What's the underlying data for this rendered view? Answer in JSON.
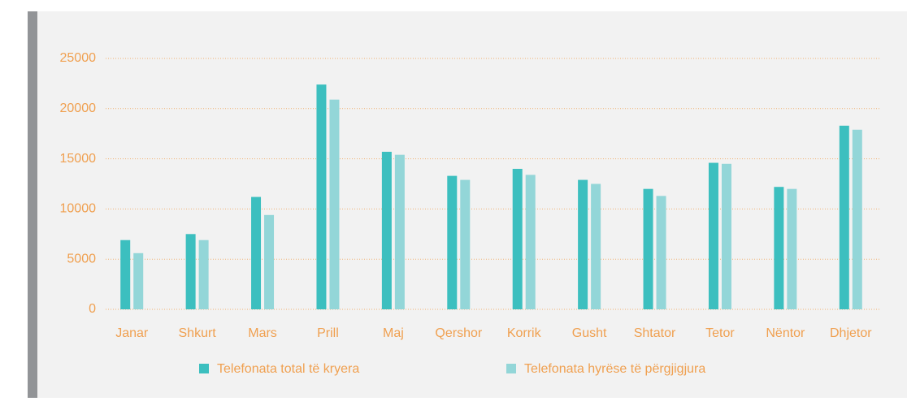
{
  "chart_data": {
    "type": "bar",
    "categories": [
      "Janar",
      "Shkurt",
      "Mars",
      "Prill",
      "Maj",
      "Qershor",
      "Korrik",
      "Gusht",
      "Shtator",
      "Tetor",
      "Nëntor",
      "Dhjetor"
    ],
    "series": [
      {
        "name": "Telefonata total të kryera",
        "color": "#3cbfbf",
        "values": [
          6900,
          7500,
          11200,
          22400,
          15700,
          13300,
          14000,
          12900,
          12000,
          14600,
          12200,
          18300
        ]
      },
      {
        "name": "Telefonata hyrëse të përgjigjura",
        "color": "#93d6d8",
        "values": [
          5600,
          6900,
          9400,
          20900,
          15400,
          12900,
          13400,
          12500,
          11300,
          14500,
          12000,
          17900
        ]
      }
    ],
    "ylim": [
      0,
      25000
    ],
    "yticks": [
      0,
      5000,
      10000,
      15000,
      20000,
      25000
    ],
    "grid": true
  }
}
